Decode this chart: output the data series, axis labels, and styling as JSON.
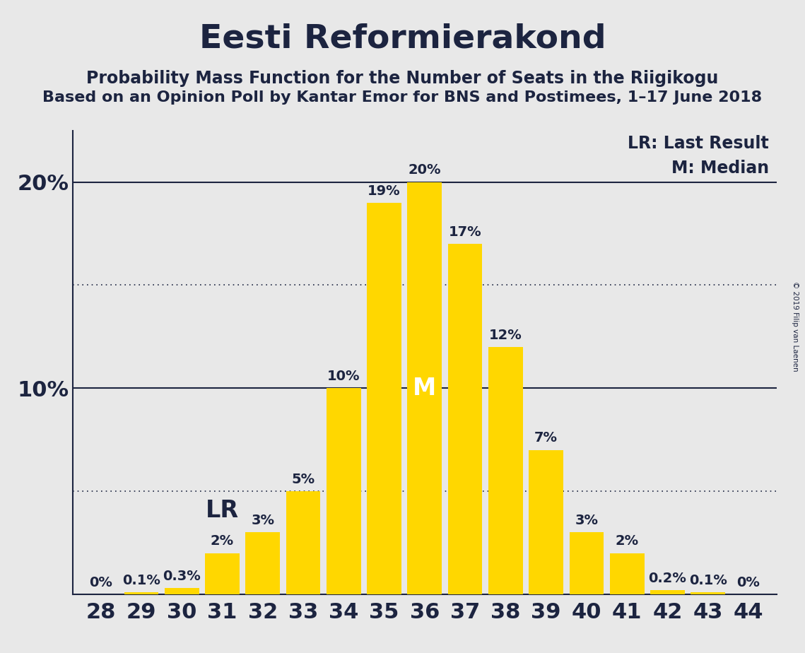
{
  "title": "Eesti Reformierakond",
  "subtitle1": "Probability Mass Function for the Number of Seats in the Riigikogu",
  "subtitle2": "Based on an Opinion Poll by Kantar Emor for BNS and Postimees, 1–17 June 2018",
  "seats": [
    28,
    29,
    30,
    31,
    32,
    33,
    34,
    35,
    36,
    37,
    38,
    39,
    40,
    41,
    42,
    43,
    44
  ],
  "probabilities": [
    0.0,
    0.1,
    0.3,
    2.0,
    3.0,
    5.0,
    10.0,
    19.0,
    20.0,
    17.0,
    12.0,
    7.0,
    3.0,
    2.0,
    0.2,
    0.1,
    0.0
  ],
  "bar_color": "#FFD700",
  "background_color": "#E8E8E8",
  "text_color": "#1C2440",
  "median_seat": 36,
  "lr_seat": 31,
  "lr_label": "LR",
  "median_label": "M",
  "legend_lr": "LR: Last Result",
  "legend_m": "M: Median",
  "dotted_lines": [
    5.0,
    15.0
  ],
  "solid_lines": [
    10.0,
    20.0
  ],
  "copyright": "© 2019 Filip van Laenen",
  "title_fontsize": 34,
  "subtitle1_fontsize": 17,
  "subtitle2_fontsize": 16,
  "axis_fontsize": 22,
  "bar_label_fontsize": 14,
  "legend_fontsize": 17,
  "median_fontsize": 24,
  "lr_fontsize": 24,
  "ylim_max": 22.5,
  "bar_width": 0.85
}
